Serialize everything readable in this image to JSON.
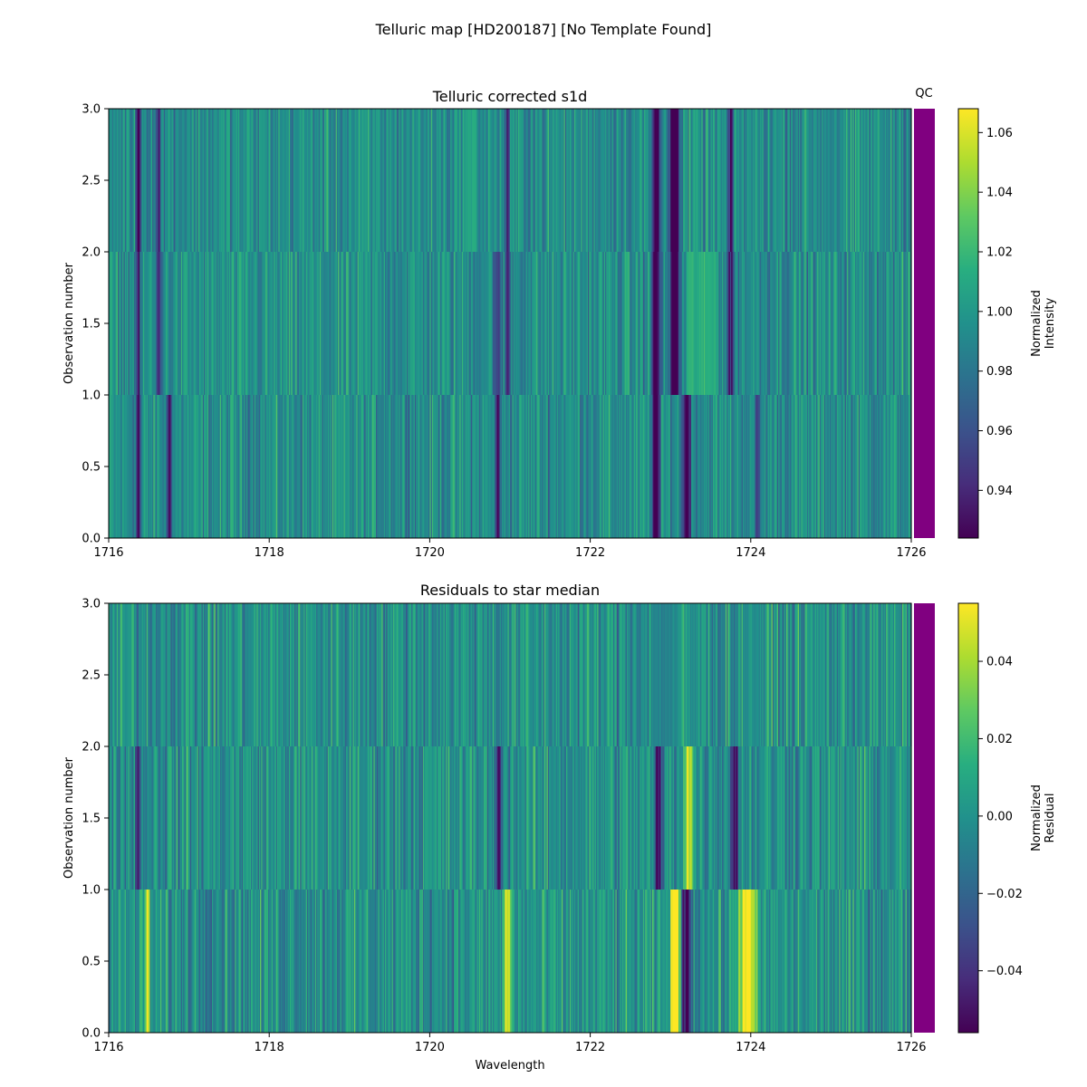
{
  "suptitle": "Telluric map [HD200187] [No Template Found]",
  "qc_label": "QC",
  "qc_color": "#800080",
  "chart_data": [
    {
      "type": "heatmap",
      "title": "Telluric corrected s1d",
      "xlabel": "",
      "ylabel": "Observation number",
      "xlim": [
        1716,
        1726
      ],
      "ylim": [
        0,
        3
      ],
      "xticks": [
        1716,
        1718,
        1720,
        1722,
        1724,
        1726
      ],
      "xtick_labels": [
        "1716",
        "1718",
        "1720",
        "1722",
        "1724",
        "1726"
      ],
      "yticks": [
        0,
        0.5,
        1,
        1.5,
        2,
        2.5,
        3
      ],
      "ytick_labels": [
        "0.0",
        "0.5",
        "1.0",
        "1.5",
        "2.0",
        "2.5",
        "3.0"
      ],
      "colormap": "viridis",
      "rows": 3,
      "colorbar": {
        "label_lines": [
          "Normalized",
          "Intensity"
        ],
        "range": [
          0.924,
          1.068
        ],
        "ticks": [
          0.94,
          0.96,
          0.98,
          1.0,
          1.02,
          1.04,
          1.06
        ],
        "tick_labels": [
          "0.94",
          "0.96",
          "0.98",
          "1.00",
          "1.02",
          "1.04",
          "1.06"
        ]
      },
      "baseline": 0.995,
      "noise": 0.018,
      "features": [
        {
          "x": 1716.37,
          "w": 0.03,
          "depth": 0.07,
          "rows": [
            0,
            1,
            2
          ]
        },
        {
          "x": 1716.62,
          "w": 0.03,
          "depth": 0.06,
          "rows": [
            1,
            2
          ]
        },
        {
          "x": 1716.75,
          "w": 0.04,
          "depth": 0.05,
          "rows": [
            0
          ]
        },
        {
          "x": 1720.85,
          "w": 0.04,
          "depth": 0.06,
          "rows": [
            0,
            1
          ]
        },
        {
          "x": 1720.97,
          "w": 0.03,
          "depth": 0.06,
          "rows": [
            1,
            2
          ]
        },
        {
          "x": 1722.82,
          "w": 0.05,
          "depth": 0.09,
          "rows": [
            0,
            1,
            2
          ]
        },
        {
          "x": 1723.05,
          "w": 0.06,
          "depth": 0.1,
          "rows": [
            1,
            2
          ]
        },
        {
          "x": 1723.2,
          "w": 0.05,
          "depth": 0.08,
          "rows": [
            0
          ]
        },
        {
          "x": 1723.75,
          "w": 0.04,
          "depth": 0.07,
          "rows": [
            1,
            2
          ]
        },
        {
          "x": 1724.08,
          "w": 0.05,
          "depth": 0.04,
          "rows": [
            0
          ]
        }
      ],
      "bumps": [
        {
          "x": 1723.4,
          "w": 0.2,
          "height": 0.03,
          "rows": [
            1
          ]
        },
        {
          "x": 1720.5,
          "w": 0.1,
          "height": 0.02,
          "rows": [
            2
          ]
        }
      ]
    },
    {
      "type": "heatmap",
      "title": "Residuals to star median",
      "xlabel": "Wavelength",
      "ylabel": "Observation number",
      "xlim": [
        1716,
        1726
      ],
      "ylim": [
        0,
        3
      ],
      "xticks": [
        1716,
        1718,
        1720,
        1722,
        1724,
        1726
      ],
      "xtick_labels": [
        "1716",
        "1718",
        "1720",
        "1722",
        "1724",
        "1726"
      ],
      "yticks": [
        0,
        0.5,
        1,
        1.5,
        2,
        2.5,
        3
      ],
      "ytick_labels": [
        "0.0",
        "0.5",
        "1.0",
        "1.5",
        "2.0",
        "2.5",
        "3.0"
      ],
      "colormap": "viridis",
      "rows": 3,
      "colorbar": {
        "label_lines": [
          "Normalized",
          "Residual"
        ],
        "range": [
          -0.056,
          0.055
        ],
        "ticks": [
          -0.04,
          -0.02,
          0.0,
          0.02,
          0.04
        ],
        "tick_labels": [
          "−0.04",
          "−0.02",
          "0.00",
          "0.02",
          "0.04"
        ]
      },
      "baseline": 0.0,
      "noise": 0.016,
      "features": [
        {
          "x": 1716.37,
          "w": 0.03,
          "depth": 0.05,
          "rows": [
            1
          ]
        },
        {
          "x": 1716.48,
          "w": 0.03,
          "depth": -0.05,
          "rows": [
            0
          ]
        },
        {
          "x": 1720.85,
          "w": 0.04,
          "depth": 0.05,
          "rows": [
            1
          ]
        },
        {
          "x": 1720.97,
          "w": 0.05,
          "depth": -0.05,
          "rows": [
            0
          ]
        },
        {
          "x": 1722.85,
          "w": 0.05,
          "depth": 0.06,
          "rows": [
            1
          ]
        },
        {
          "x": 1723.05,
          "w": 0.06,
          "depth": -0.07,
          "rows": [
            0
          ]
        },
        {
          "x": 1723.2,
          "w": 0.05,
          "depth": 0.06,
          "rows": [
            0
          ]
        },
        {
          "x": 1723.22,
          "w": 0.06,
          "depth": -0.05,
          "rows": [
            1
          ]
        },
        {
          "x": 1723.8,
          "w": 0.04,
          "depth": 0.06,
          "rows": [
            1
          ]
        },
        {
          "x": 1723.95,
          "w": 0.1,
          "depth": -0.07,
          "rows": [
            0
          ]
        }
      ],
      "bumps": [
        {
          "x": 1722.9,
          "w": 0.15,
          "height": -0.01,
          "rows": [
            2
          ]
        },
        {
          "x": 1724.0,
          "w": 0.1,
          "height": 0.0,
          "rows": [
            2
          ]
        }
      ]
    }
  ]
}
